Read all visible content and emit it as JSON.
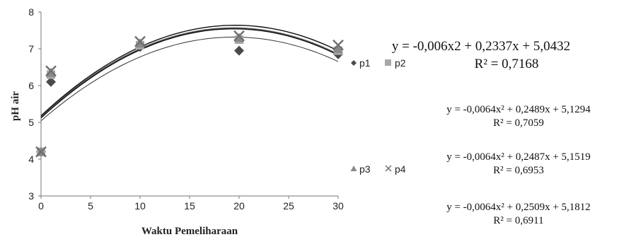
{
  "chart_data": {
    "type": "scatter",
    "xlabel": "Waktu Pemeliharaan",
    "ylabel": "pH air",
    "xlim": [
      0,
      30
    ],
    "ylim": [
      3,
      8
    ],
    "xticks": [
      0,
      5,
      10,
      15,
      20,
      25,
      30
    ],
    "yticks": [
      3,
      4,
      5,
      6,
      7,
      8
    ],
    "x": [
      0,
      1,
      10,
      20,
      30
    ],
    "series": [
      {
        "name": "p1",
        "marker": "diamond",
        "color": "#4a4a4a",
        "values": [
          4.2,
          6.1,
          7.05,
          6.95,
          6.85
        ]
      },
      {
        "name": "p2",
        "marker": "square",
        "color": "#a8a8a8",
        "values": [
          4.2,
          6.3,
          7.1,
          7.25,
          6.95
        ]
      },
      {
        "name": "p3",
        "marker": "triangle",
        "color": "#8a8a8a",
        "values": [
          4.2,
          6.35,
          7.15,
          7.3,
          7.0
        ]
      },
      {
        "name": "p4",
        "marker": "x",
        "color": "#707070",
        "values": [
          4.2,
          6.4,
          7.2,
          7.35,
          7.1
        ]
      }
    ],
    "trendlines": [
      {
        "a": -0.006,
        "b": 0.2337,
        "c": 5.0432,
        "color": "#333333",
        "width": 1.0
      },
      {
        "a": -0.0064,
        "b": 0.2489,
        "c": 5.1294,
        "color": "#000000",
        "width": 2.0
      },
      {
        "a": -0.0064,
        "b": 0.2487,
        "c": 5.1519,
        "color": "#555555",
        "width": 1.6
      },
      {
        "a": -0.0064,
        "b": 0.2509,
        "c": 5.1812,
        "color": "#111111",
        "width": 1.4
      }
    ],
    "legend": [
      "p1",
      "p2",
      "p3",
      "p4"
    ],
    "equations": [
      {
        "eq": "y = -0,006x2 + 0,2337x + 5,0432",
        "r2": "R² = 0,7168"
      },
      {
        "eq": "y = -0,0064x² + 0,2489x + 5,1294",
        "r2": "R² = 0,7059"
      },
      {
        "eq": "y = -0,0064x² + 0,2487x + 5,1519",
        "r2": "R² = 0,6953"
      },
      {
        "eq": "y = -0,0064x² + 0,2509x + 5,1812",
        "r2": "R² = 0,6911"
      }
    ]
  }
}
